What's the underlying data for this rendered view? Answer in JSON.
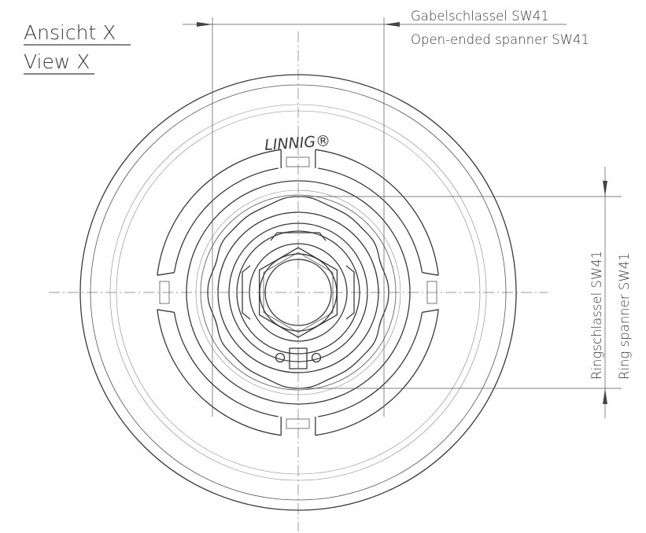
{
  "view": {
    "title_de": "Ansicht X",
    "title_en": "View X"
  },
  "annotations": {
    "open_spanner_de": "Gabelschlassel SW41",
    "open_spanner_en": "Open-ended spanner SW41",
    "ring_spanner_de": "Ringschlassel SW41",
    "ring_spanner_en": "Ring spanner SW41"
  },
  "brand": {
    "name": "LINNIG®"
  },
  "colors": {
    "line": "#3a3a3a",
    "background": "#ffffff"
  }
}
